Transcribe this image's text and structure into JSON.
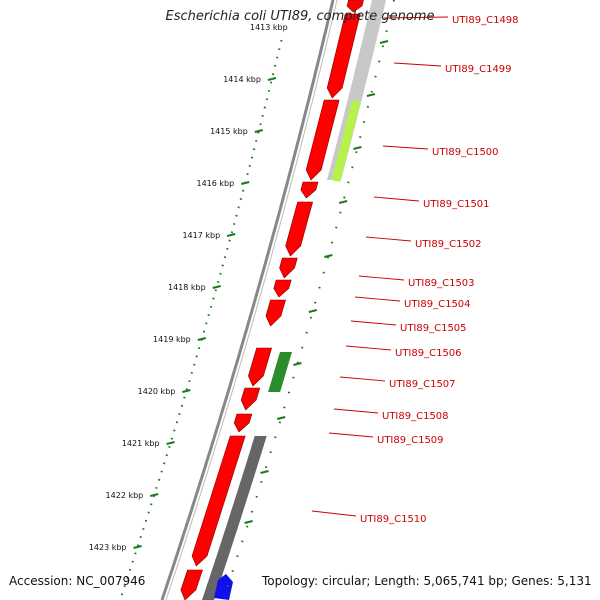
{
  "map": {
    "title": "Escherichia coli UTI89, complete genome",
    "accession": "Accession: NC_007946",
    "summary": "Topology: circular; Length: 5,065,741 bp; Genes: 5,131",
    "partial_top_tick": "1413 kbp",
    "ticks": [
      "1414 kbp",
      "1415 kbp",
      "1416 kbp",
      "1417 kbp",
      "1418 kbp",
      "1419 kbp",
      "1420 kbp",
      "1421 kbp",
      "1422 kbp",
      "1423 kbp"
    ],
    "genes": [
      "UTI89_C1498",
      "UTI89_C1499",
      "UTI89_C1500",
      "UTI89_C1501",
      "UTI89_C1502",
      "UTI89_C1503",
      "UTI89_C1504",
      "UTI89_C1505",
      "UTI89_C1506",
      "UTI89_C1507",
      "UTI89_C1508",
      "UTI89_C1509",
      "UTI89_C1510"
    ],
    "colors": {
      "cds": "#ff0000",
      "gene_label": "#cc0000",
      "tick": "#1a7a1a",
      "backbone": "#888888",
      "highlight": "#b7f24a",
      "green_feature": "#2a8c2a",
      "dark_feature": "#666666",
      "blue_feature": "#1010ee"
    }
  }
}
